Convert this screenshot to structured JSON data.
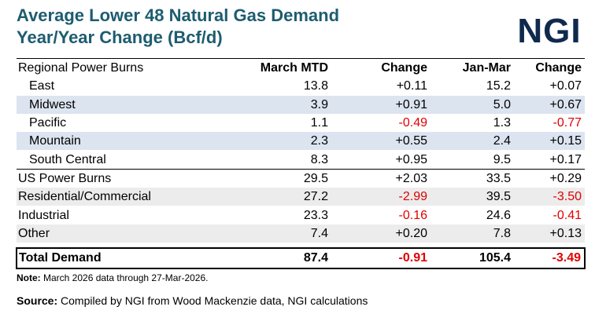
{
  "title_line1": "Average Lower 48 Natural Gas Demand",
  "title_line2": "Year/Year Change (Bcf/d)",
  "logo_text": "NGI",
  "colors": {
    "title": "#1d5c70",
    "logo": "#0f2a4d",
    "negative": "#e00000",
    "band_blue": "#dce4f0",
    "band_gray": "#ececec"
  },
  "chart_data": {
    "type": "table",
    "columns": [
      "Regional Power Burns",
      "March MTD",
      "Change",
      "Jan-Mar",
      "Change"
    ],
    "rows": [
      {
        "label": "East",
        "march_mtd": "13.8",
        "change_mtd": "+0.11",
        "jan_mar": "15.2",
        "change_ytd": "+0.07"
      },
      {
        "label": "Midwest",
        "march_mtd": "3.9",
        "change_mtd": "+0.91",
        "jan_mar": "5.0",
        "change_ytd": "+0.67"
      },
      {
        "label": "Pacific",
        "march_mtd": "1.1",
        "change_mtd": "-0.49",
        "jan_mar": "1.3",
        "change_ytd": "-0.77"
      },
      {
        "label": "Mountain",
        "march_mtd": "2.3",
        "change_mtd": "+0.55",
        "jan_mar": "2.4",
        "change_ytd": "+0.15"
      },
      {
        "label": "South Central",
        "march_mtd": "8.3",
        "change_mtd": "+0.95",
        "jan_mar": "9.5",
        "change_ytd": "+0.17"
      },
      {
        "label": "US Power Burns",
        "march_mtd": "29.5",
        "change_mtd": "+2.03",
        "jan_mar": "33.5",
        "change_ytd": "+0.29"
      },
      {
        "label": "Residential/Commercial",
        "march_mtd": "27.2",
        "change_mtd": "-2.99",
        "jan_mar": "39.5",
        "change_ytd": "-3.50"
      },
      {
        "label": "Industrial",
        "march_mtd": "23.3",
        "change_mtd": "-0.16",
        "jan_mar": "24.6",
        "change_ytd": "-0.41"
      },
      {
        "label": "Other",
        "march_mtd": "7.4",
        "change_mtd": "+0.20",
        "jan_mar": "7.8",
        "change_ytd": "+0.13"
      }
    ],
    "total": {
      "label": "Total Demand",
      "march_mtd": "87.4",
      "change_mtd": "-0.91",
      "jan_mar": "105.4",
      "change_ytd": "-3.49"
    }
  },
  "note_label": "Note:",
  "note_text": " March 2026 data through 27-Mar-2026.",
  "source_label": "Source:",
  "source_text": " Compiled by NGI from Wood Mackenzie data, NGI calculations"
}
